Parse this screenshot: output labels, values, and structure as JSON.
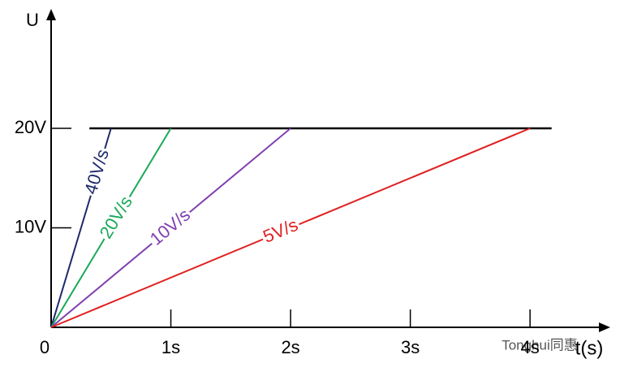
{
  "chart_data": {
    "type": "line",
    "y_label": "U",
    "x_label": "t(s)",
    "xlim": [
      0,
      4.67
    ],
    "ylim": [
      0,
      32
    ],
    "xticks": [
      0,
      {
        "value": 1,
        "label": "1s"
      },
      {
        "value": 2,
        "label": "2s"
      },
      {
        "value": 3,
        "label": "3s"
      },
      {
        "value": 4,
        "label": "4s"
      }
    ],
    "yticks": [
      {
        "value": 10,
        "label": "10V"
      },
      {
        "value": 20,
        "label": "20V"
      }
    ],
    "hline": {
      "value": 20,
      "x": [
        0.32,
        4.18
      ],
      "color": "#000000"
    },
    "series": [
      {
        "name": "40V/s",
        "color": "#1f2a6b",
        "x": [
          0,
          0.5
        ],
        "values": [
          0,
          20
        ]
      },
      {
        "name": "20V/s",
        "color": "#1aa85a",
        "x": [
          0,
          1
        ],
        "values": [
          0,
          20
        ]
      },
      {
        "name": "10V/s",
        "color": "#8040b0",
        "x": [
          0,
          2
        ],
        "values": [
          0,
          20
        ]
      },
      {
        "name": "5V/s",
        "color": "#e02020",
        "x": [
          0,
          4
        ],
        "values": [
          0,
          20
        ]
      }
    ],
    "watermark": "Tonghui同惠"
  }
}
